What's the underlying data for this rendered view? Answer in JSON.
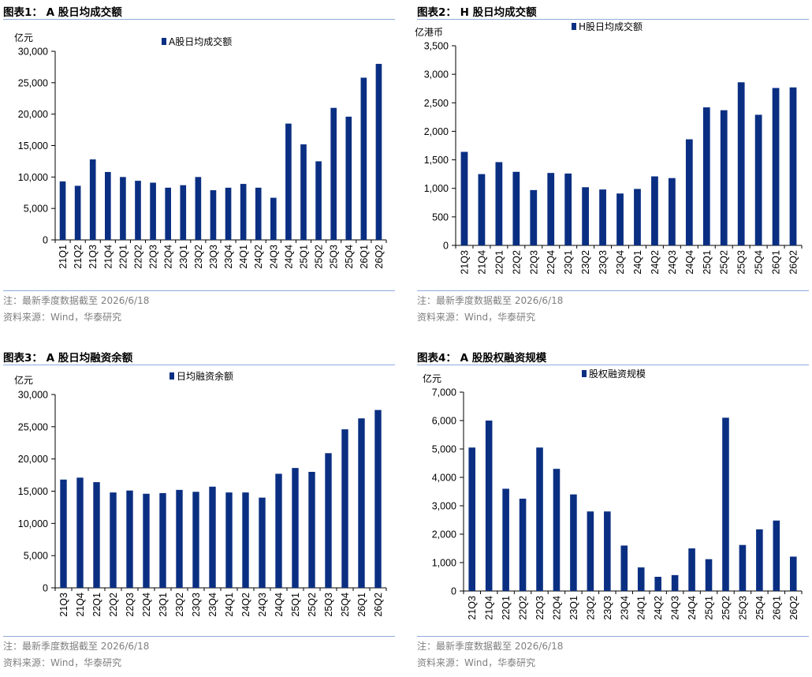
{
  "colors": {
    "bar": "#0a2f82",
    "rule": "#8faadc",
    "note": "#7f7f7f"
  },
  "notes": {
    "note1": "注：最新季度数据截至 2026/6/18",
    "source": "资料来源：Wind，华泰研究"
  },
  "chart_data": [
    {
      "title": "图表1：  A 股日均成交额",
      "type": "bar",
      "unit": "亿元",
      "legend": "A股日均成交额",
      "categories": [
        "21Q1",
        "21Q2",
        "21Q3",
        "21Q4",
        "22Q1",
        "22Q2",
        "22Q3",
        "22Q4",
        "23Q1",
        "23Q2",
        "23Q3",
        "23Q4",
        "24Q1",
        "24Q2",
        "24Q3",
        "24Q4",
        "25Q1",
        "25Q2",
        "25Q3",
        "25Q4",
        "26Q1",
        "26Q2"
      ],
      "values": [
        9300,
        8600,
        12800,
        10800,
        10000,
        9400,
        9100,
        8300,
        8700,
        10000,
        7900,
        8300,
        8900,
        8300,
        6700,
        18500,
        15200,
        12500,
        21000,
        19600,
        25800,
        28000
      ],
      "ylim": [
        0,
        30000
      ],
      "yticks": [
        0,
        5000,
        10000,
        15000,
        20000,
        25000,
        30000
      ],
      "ytick_labels": [
        "0",
        "5,000",
        "10,000",
        "15,000",
        "20,000",
        "25,000",
        "30,000"
      ]
    },
    {
      "title": "图表2：  H 股日均成交额",
      "type": "bar",
      "unit": "亿港币",
      "legend": "H股日均成交额",
      "categories": [
        "21Q3",
        "21Q4",
        "22Q1",
        "22Q2",
        "22Q3",
        "22Q4",
        "23Q1",
        "23Q2",
        "23Q3",
        "23Q4",
        "24Q1",
        "24Q2",
        "24Q3",
        "24Q4",
        "25Q1",
        "25Q2",
        "25Q3",
        "25Q4",
        "26Q1",
        "26Q2"
      ],
      "values": [
        1640,
        1250,
        1460,
        1290,
        970,
        1270,
        1260,
        1020,
        980,
        910,
        990,
        1210,
        1180,
        1860,
        2420,
        2370,
        2860,
        2290,
        2760,
        2770
      ],
      "ylim": [
        0,
        3500
      ],
      "yticks": [
        0,
        500,
        1000,
        1500,
        2000,
        2500,
        3000,
        3500
      ],
      "ytick_labels": [
        "0",
        "500",
        "1,000",
        "1,500",
        "2,000",
        "2,500",
        "3,000",
        "3,500"
      ]
    },
    {
      "title": "图表3：  A 股日均融资余额",
      "type": "bar",
      "unit": "亿元",
      "legend": "日均融资余额",
      "categories": [
        "21Q3",
        "21Q4",
        "22Q1",
        "22Q2",
        "22Q3",
        "22Q4",
        "23Q1",
        "23Q2",
        "23Q3",
        "23Q4",
        "24Q1",
        "24Q2",
        "24Q3",
        "24Q4",
        "25Q1",
        "25Q2",
        "25Q3",
        "25Q4",
        "26Q1",
        "26Q2"
      ],
      "values": [
        16800,
        17100,
        16400,
        14800,
        15100,
        14600,
        14700,
        15200,
        14900,
        15700,
        14800,
        14800,
        14000,
        17700,
        18600,
        18000,
        20900,
        24600,
        26300,
        27600
      ],
      "ylim": [
        0,
        30000
      ],
      "yticks": [
        0,
        5000,
        10000,
        15000,
        20000,
        25000,
        30000
      ],
      "ytick_labels": [
        "0",
        "5,000",
        "10,000",
        "15,000",
        "20,000",
        "25,000",
        "30,000"
      ]
    },
    {
      "title": "图表4：  A 股股权融资规模",
      "type": "bar",
      "unit": "亿元",
      "legend": "股权融资规模",
      "categories": [
        "21Q3",
        "21Q4",
        "22Q1",
        "22Q2",
        "22Q3",
        "22Q4",
        "23Q1",
        "23Q2",
        "23Q3",
        "23Q4",
        "24Q1",
        "24Q2",
        "24Q3",
        "24Q4",
        "25Q1",
        "25Q2",
        "25Q3",
        "25Q4",
        "26Q1",
        "26Q2"
      ],
      "values": [
        5050,
        6000,
        3600,
        3250,
        5050,
        4300,
        3400,
        2800,
        2800,
        1600,
        830,
        500,
        560,
        1500,
        1120,
        6100,
        1620,
        2170,
        2480,
        1210
      ],
      "ylim": [
        0,
        7000
      ],
      "yticks": [
        0,
        1000,
        2000,
        3000,
        4000,
        5000,
        6000,
        7000
      ],
      "ytick_labels": [
        "0",
        "1,000",
        "2,000",
        "3,000",
        "4,000",
        "5,000",
        "6,000",
        "7,000"
      ]
    }
  ]
}
